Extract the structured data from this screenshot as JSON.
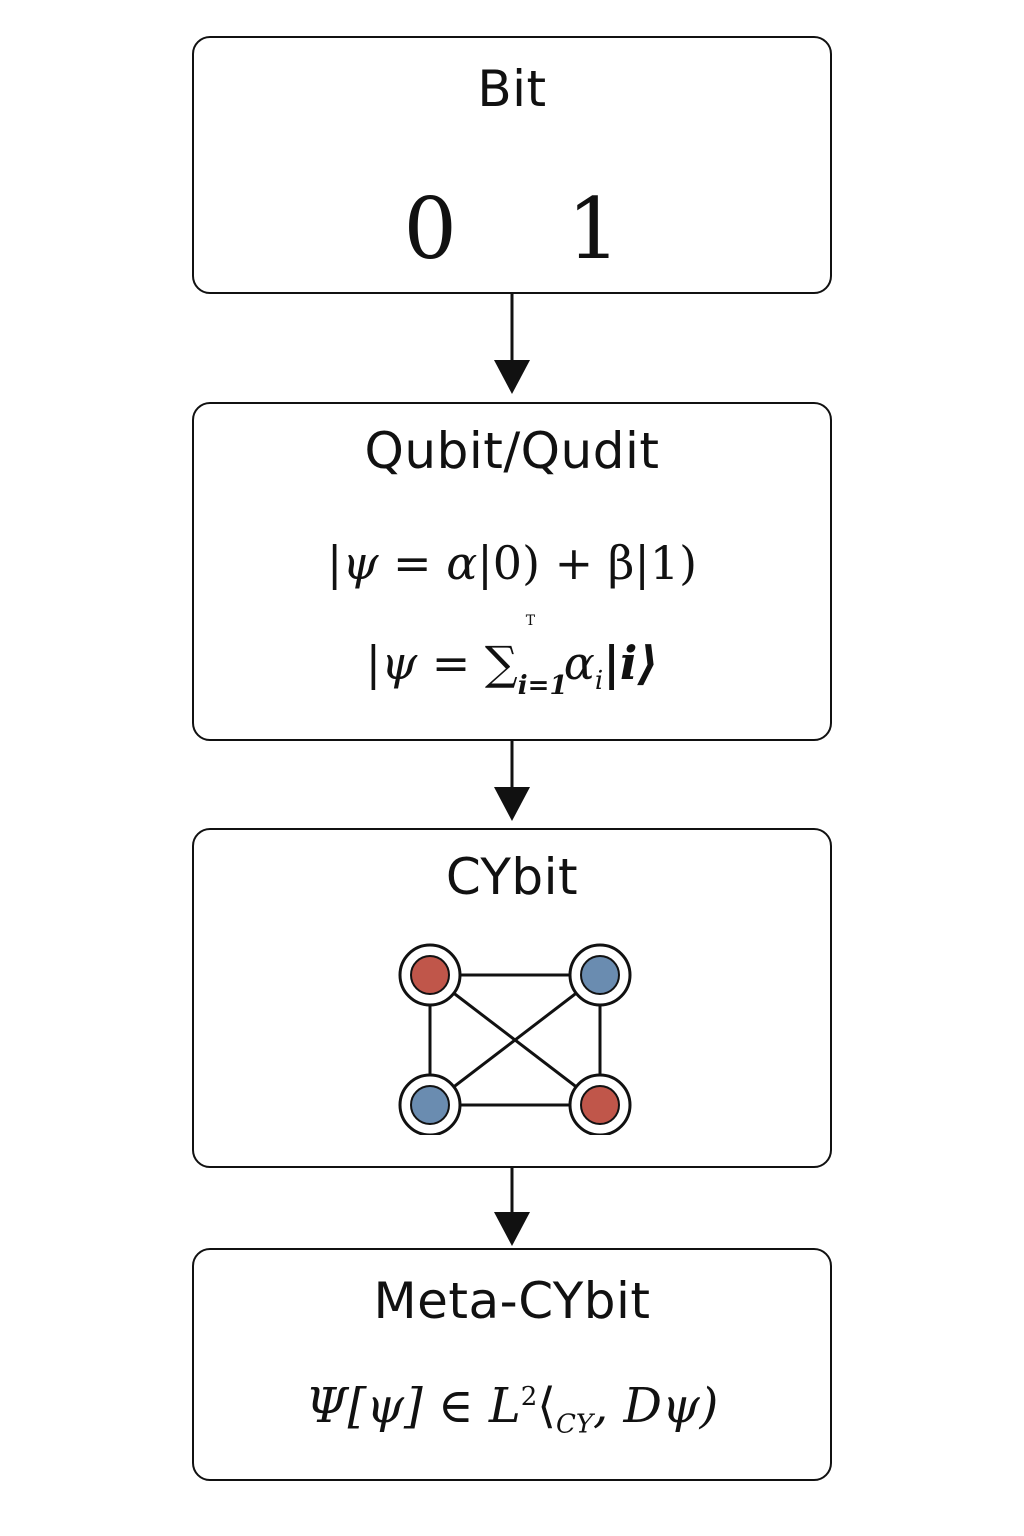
{
  "nodes": {
    "bit": {
      "title": "Bit",
      "values": [
        "0",
        "1"
      ]
    },
    "qubit": {
      "title": "Qubit/Qudit",
      "eq1": {
        "open": "|ψ = α|",
        "zero": "0",
        "mid": ") + β|",
        "one": "1",
        "close": ")"
      },
      "eq2": {
        "lhs": "|ψ = ∑",
        "upper": "T",
        "lower": "i=1",
        "alpha": "α",
        "alpha_sub": "i",
        "ket": "|i⟩"
      }
    },
    "cybit": {
      "title": "CYbit",
      "graph": {
        "nodes": [
          "red",
          "blue",
          "blue",
          "red"
        ],
        "colors": {
          "red": "#c0564a",
          "blue": "#6a8cb0"
        }
      }
    },
    "meta": {
      "title": "Meta-CYbit",
      "eq": {
        "lhs": "Ψ[ψ] ∈ L",
        "sup": "2",
        "mid": "⟨",
        "sub_cy": "CY",
        "rest": ", Dψ)"
      }
    }
  }
}
